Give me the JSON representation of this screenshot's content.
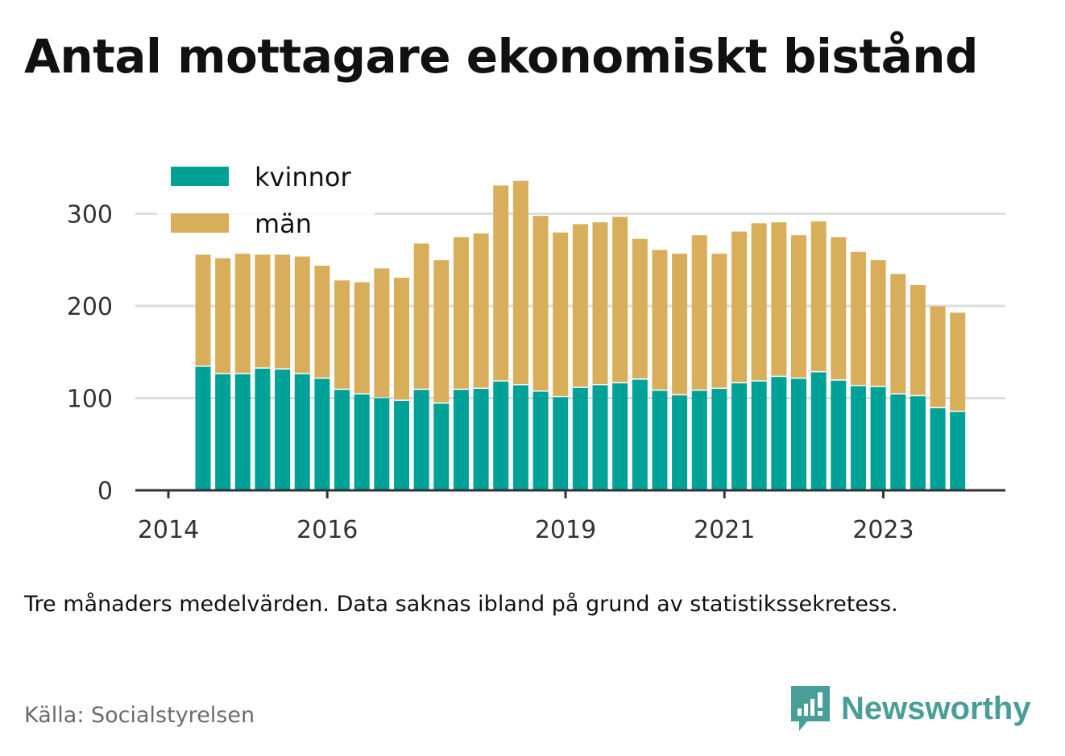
{
  "title": "Antal mottagare ekonomiskt bistånd",
  "note": "Tre månaders medelvärden. Data saknas ibland på grund av statistikssekretess.",
  "source": "Källa: Socialstyrelsen",
  "brand": {
    "name": "Newsworthy",
    "icon": "newsworthy-logo-icon",
    "color": "#4a9e98"
  },
  "colors": {
    "kvinnor": "#00a298",
    "man": "#d9ae5b",
    "grid": "#dddddd",
    "axis": "#333333"
  },
  "chart_data": {
    "type": "bar",
    "stacked": true,
    "ylim": [
      0,
      340
    ],
    "yticks": [
      0,
      100,
      200,
      300
    ],
    "xticks": [
      "2014",
      "2016",
      "2019",
      "2021",
      "2023"
    ],
    "xlabel": "",
    "ylabel": "",
    "grid": true,
    "legend": {
      "position": "top-left",
      "entries": [
        "kvinnor",
        "män"
      ]
    },
    "x_first": 2014.25,
    "x_step": 0.25,
    "series": [
      {
        "name": "kvinnor",
        "color": "#00a298",
        "values": [
          134,
          126,
          126,
          132,
          131,
          126,
          121,
          109,
          104,
          100,
          97,
          109,
          94,
          109,
          110,
          118,
          114,
          107,
          101,
          111,
          114,
          116,
          120,
          108,
          103,
          108,
          110,
          116,
          118,
          123,
          121,
          128,
          119,
          113,
          112,
          104,
          102,
          89,
          85
        ]
      },
      {
        "name": "män",
        "color": "#d9ae5b",
        "values": [
          123,
          127,
          132,
          125,
          126,
          129,
          124,
          120,
          123,
          142,
          135,
          160,
          157,
          167,
          170,
          214,
          223,
          192,
          180,
          179,
          178,
          182,
          154,
          154,
          155,
          170,
          148,
          166,
          173,
          169,
          157,
          165,
          157,
          147,
          139,
          132,
          122,
          112,
          109
        ]
      }
    ]
  }
}
